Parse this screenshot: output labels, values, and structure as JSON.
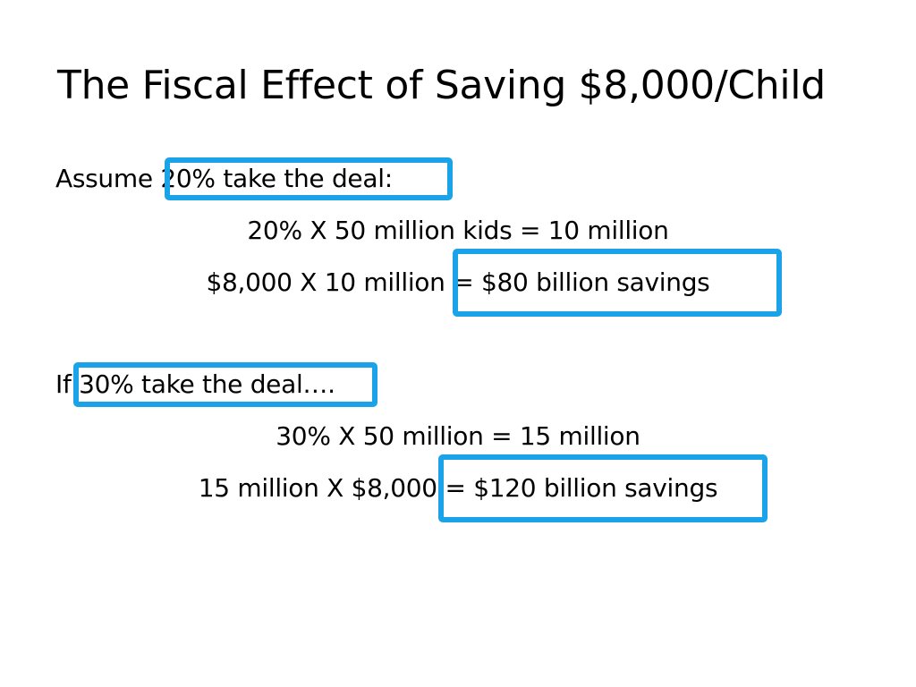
{
  "slide": {
    "title": "The Fiscal Effect of Saving $8,000/Child",
    "scenario1": {
      "lead": "Assume",
      "premise": "20% take the deal:",
      "calc1": "20% X 50 million kids = 10 million",
      "calc2_lhs": "$8,000  X 10 million",
      "calc2_result": "= $80 billion savings"
    },
    "scenario2": {
      "lead": "If",
      "premise": "30% take the deal….",
      "calc1": "30% X 50 million = 15 million",
      "calc2_lhs": "15 million X $8,000",
      "calc2_result": "= $120 billion savings"
    },
    "highlight_color": "#1aa3e8"
  }
}
